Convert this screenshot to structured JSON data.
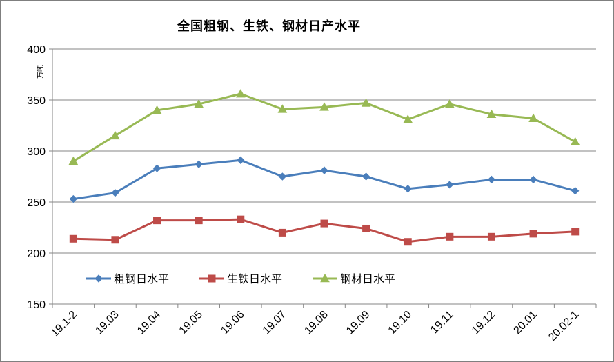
{
  "chart_data": {
    "type": "line",
    "title": "全国粗钢、生铁、钢材日产水平",
    "ylabel": "万吨",
    "xlabel": "",
    "ylim": [
      150,
      400
    ],
    "yticks": [
      150,
      200,
      250,
      300,
      350,
      400
    ],
    "grid": true,
    "legend_position": "bottom-left",
    "categories": [
      "19.1-2",
      "19.03",
      "19.04",
      "19.05",
      "19.06",
      "19.07",
      "19.08",
      "19.09",
      "19.10",
      "19.11",
      "19.12",
      "20.01",
      "20.02-1"
    ],
    "series": [
      {
        "name": "粗钢日水平",
        "color": "#4a7ebb",
        "marker": "diamond",
        "values": [
          253,
          259,
          283,
          287,
          291,
          275,
          281,
          275,
          263,
          267,
          272,
          272,
          261
        ]
      },
      {
        "name": "生铁日水平",
        "color": "#be4b48",
        "marker": "square",
        "values": [
          214,
          213,
          232,
          232,
          233,
          220,
          229,
          224,
          211,
          216,
          216,
          219,
          221
        ]
      },
      {
        "name": "钢材日水平",
        "color": "#98b954",
        "marker": "triangle",
        "values": [
          290,
          315,
          340,
          346,
          356,
          341,
          343,
          347,
          331,
          346,
          336,
          332,
          309
        ]
      }
    ]
  }
}
